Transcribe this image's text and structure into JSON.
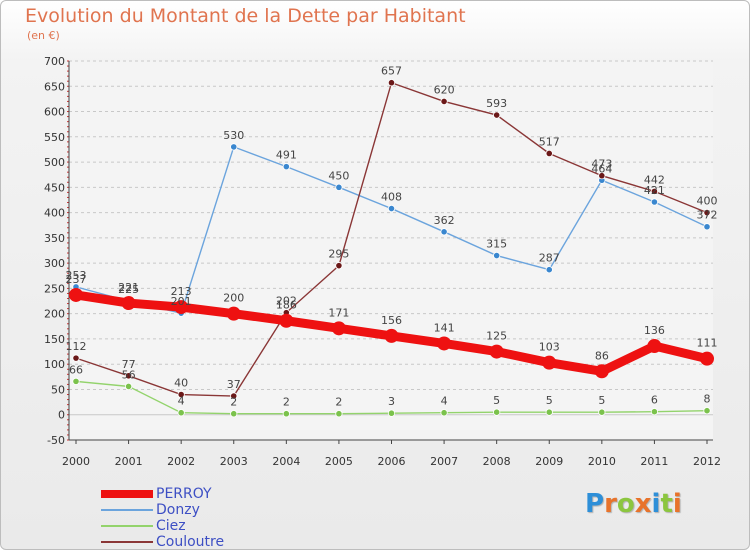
{
  "title": "Evolution du Montant de la Dette par Habitant",
  "subtitle": "(en €)",
  "logo": {
    "letters": [
      "P",
      "r",
      "o",
      "x",
      "i",
      "t",
      "i"
    ],
    "colors": [
      "#2e8fd8",
      "#e8732b",
      "#8cc63f",
      "#e8732b",
      "#2e8fd8",
      "#8cc63f",
      "#e8732b"
    ]
  },
  "chart_data": {
    "type": "line",
    "x": [
      "2000",
      "2001",
      "2002",
      "2003",
      "2004",
      "2005",
      "2006",
      "2007",
      "2008",
      "2009",
      "2010",
      "2011",
      "2012"
    ],
    "y_ticks": [
      "-50",
      "0",
      "50",
      "100",
      "150",
      "200",
      "250",
      "300",
      "350",
      "400",
      "450",
      "500",
      "550",
      "600",
      "650",
      "700"
    ],
    "ylim": [
      -50,
      700
    ],
    "grid": "horizontal",
    "legend_position": "bottom-left",
    "series": [
      {
        "name": "PERROY",
        "color": "#ee1111",
        "bold": true,
        "values": [
          237,
          221,
          213,
          200,
          186,
          171,
          156,
          141,
          125,
          103,
          86,
          136,
          111
        ],
        "labels": [
          "237",
          "221",
          "213",
          "200",
          "186",
          "171",
          "156",
          "141",
          "125",
          "103",
          "86",
          "136",
          "111"
        ]
      },
      {
        "name": "Donzy",
        "color": "#6ba4dd",
        "marker": "#3a87cf",
        "values": [
          253,
          225,
          201,
          530,
          491,
          450,
          408,
          362,
          315,
          287,
          464,
          421,
          372
        ],
        "labels": [
          "253",
          "225",
          "201",
          "530",
          "491",
          "450",
          "408",
          "362",
          "315",
          "287",
          "464",
          "421",
          "372"
        ]
      },
      {
        "name": "Ciez",
        "color": "#93d36c",
        "marker": "#7bc24c",
        "values": [
          66,
          56,
          4,
          2,
          2,
          2,
          3,
          4,
          5,
          5,
          5,
          6,
          8
        ],
        "labels": [
          "66",
          "56",
          "4",
          "2",
          "2",
          "2",
          "3",
          "4",
          "5",
          "5",
          "5",
          "6",
          "8"
        ]
      },
      {
        "name": "Couloutre",
        "color": "#8a3636",
        "marker": "#6b1818",
        "values": [
          112,
          77,
          40,
          37,
          202,
          295,
          657,
          620,
          593,
          517,
          473,
          442,
          400
        ],
        "labels": [
          "112",
          "77",
          "40",
          "37",
          "202",
          "295",
          "657",
          "620",
          "593",
          "517",
          "473",
          "442",
          "400"
        ]
      }
    ]
  }
}
